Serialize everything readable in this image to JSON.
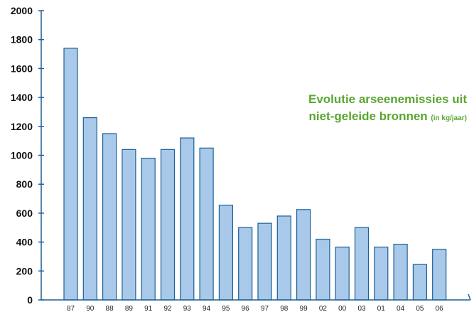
{
  "chart_data": {
    "type": "bar",
    "title_line1": "Evolutie arseenemissies uit",
    "title_line2": "niet-geleide bronnen",
    "title_unit": "(in kg/jaar)",
    "categories": [
      "87",
      "90",
      "88",
      "89",
      "91",
      "92",
      "93",
      "94",
      "95",
      "96",
      "97",
      "98",
      "99",
      "02",
      "00",
      "03",
      "01",
      "04",
      "05",
      "06"
    ],
    "values": [
      1740,
      1260,
      1150,
      1040,
      980,
      1040,
      1120,
      1050,
      655,
      500,
      530,
      580,
      625,
      420,
      365,
      500,
      365,
      385,
      245,
      350
    ],
    "ylim": [
      0,
      2000
    ],
    "yticks": [
      "0",
      "200",
      "400",
      "600",
      "800",
      "1000",
      "1200",
      "1400",
      "1600",
      "1800",
      "2000"
    ],
    "grid": false,
    "colors": {
      "bar_fill": "#a9c9ea",
      "bar_stroke": "#1d5f96",
      "axis": "#1d5f96",
      "title": "#5aa630"
    }
  }
}
